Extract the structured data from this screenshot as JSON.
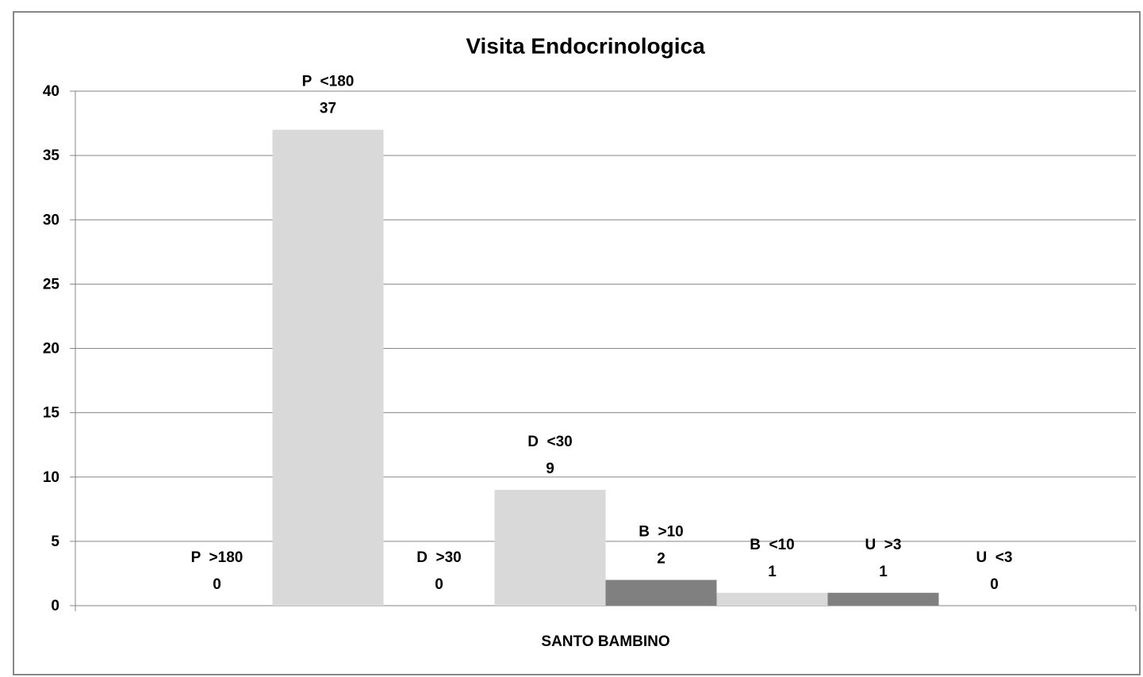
{
  "chart_data": {
    "type": "bar",
    "title": "Visita Endocrinologica",
    "categories": [
      "SANTO BAMBINO"
    ],
    "series": [
      {
        "name": "P  >180",
        "color": "#808080",
        "values": [
          0
        ]
      },
      {
        "name": "P  <180",
        "color": "#d9d9d9",
        "values": [
          37
        ]
      },
      {
        "name": "D  >30",
        "color": "#808080",
        "values": [
          0
        ]
      },
      {
        "name": "D  <30",
        "color": "#d9d9d9",
        "values": [
          9
        ]
      },
      {
        "name": "B  >10",
        "color": "#808080",
        "values": [
          2
        ]
      },
      {
        "name": "B  <10",
        "color": "#d9d9d9",
        "values": [
          1
        ]
      },
      {
        "name": "U  >3",
        "color": "#808080",
        "values": [
          1
        ]
      },
      {
        "name": "U  <3",
        "color": "#d9d9d9",
        "values": [
          0
        ]
      }
    ],
    "ylim": [
      0,
      40
    ],
    "yticks": [
      0,
      5,
      10,
      15,
      20,
      25,
      30,
      35,
      40
    ],
    "grid": true
  }
}
